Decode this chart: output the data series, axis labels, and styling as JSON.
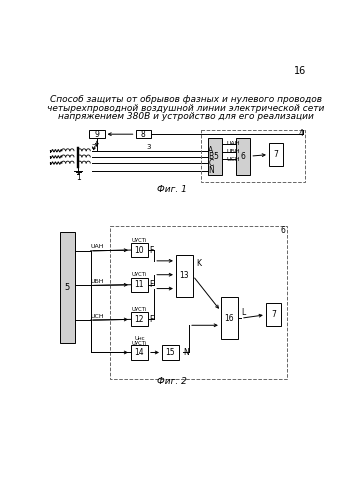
{
  "page_number": "16",
  "title_line1": "Способ защиты от обрывов фазных и нулевого проводов",
  "title_line2": "четырехпроводной воздушной линии электрической сети",
  "title_line3": "напряжением 380В и устройство для его реализации",
  "fig1_caption": "Фиг. 1",
  "fig2_caption": "Фиг. 2",
  "bg_color": "#ffffff",
  "box_fill_gray": "#d0d0d0",
  "box_fill_white": "#ffffff",
  "dashed_color": "#666666",
  "line_color": "#000000"
}
